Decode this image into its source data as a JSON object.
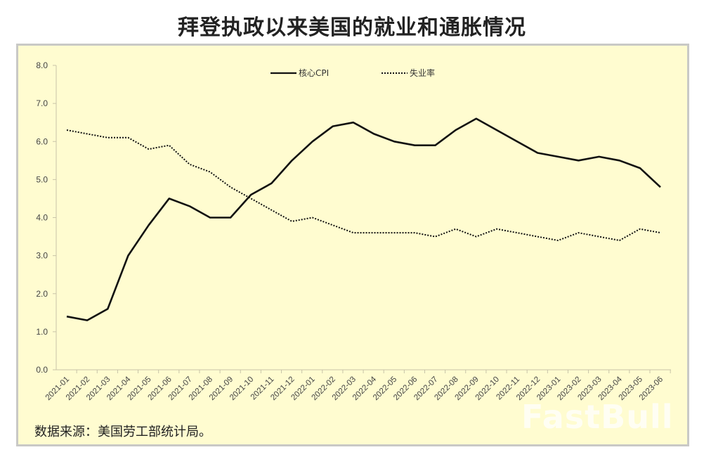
{
  "title": "拜登执政以来美国的就业和通胀情况",
  "source_note": "数据来源：美国劳工部统计局。",
  "watermark": "FastBull",
  "colors": {
    "frame_bg": "#fffcd0",
    "frame_border": "#c9c9c6",
    "line": "#111111",
    "axis": "#c8c4a8",
    "tick_label": "#444444"
  },
  "chart_data": {
    "type": "line",
    "title": "拜登执政以来美国的就业和通胀情况",
    "xlabel": "",
    "ylabel": "",
    "ylim": [
      0,
      8
    ],
    "yticks": [
      "0.0",
      "1.0",
      "2.0",
      "3.0",
      "4.0",
      "5.0",
      "6.0",
      "7.0",
      "8.0"
    ],
    "grid": false,
    "legend_position": "top-center",
    "categories": [
      "2021-01",
      "2021-02",
      "2021-03",
      "2021-04",
      "2021-05",
      "2021-06",
      "2021-07",
      "2021-08",
      "2021-09",
      "2021-10",
      "2021-11",
      "2021-12",
      "2022-01",
      "2022-02",
      "2022-03",
      "2022-04",
      "2022-05",
      "2022-06",
      "2022-07",
      "2022-08",
      "2022-09",
      "2022-10",
      "2022-11",
      "2022-12",
      "2023-01",
      "2023-02",
      "2023-03",
      "2023-04",
      "2023-05",
      "2023-06"
    ],
    "series": [
      {
        "name": "核心CPI",
        "style": "solid",
        "values": [
          1.4,
          1.3,
          1.6,
          3.0,
          3.8,
          4.5,
          4.3,
          4.0,
          4.0,
          4.6,
          4.9,
          5.5,
          6.0,
          6.4,
          6.5,
          6.2,
          6.0,
          5.9,
          5.9,
          6.3,
          6.6,
          6.3,
          6.0,
          5.7,
          5.6,
          5.5,
          5.6,
          5.5,
          5.3,
          4.8
        ]
      },
      {
        "name": "失业率",
        "style": "dotted",
        "values": [
          6.3,
          6.2,
          6.1,
          6.1,
          5.8,
          5.9,
          5.4,
          5.2,
          4.8,
          4.5,
          4.2,
          3.9,
          4.0,
          3.8,
          3.6,
          3.6,
          3.6,
          3.6,
          3.5,
          3.7,
          3.5,
          3.7,
          3.6,
          3.5,
          3.4,
          3.6,
          3.5,
          3.4,
          3.7,
          3.6
        ]
      }
    ]
  }
}
